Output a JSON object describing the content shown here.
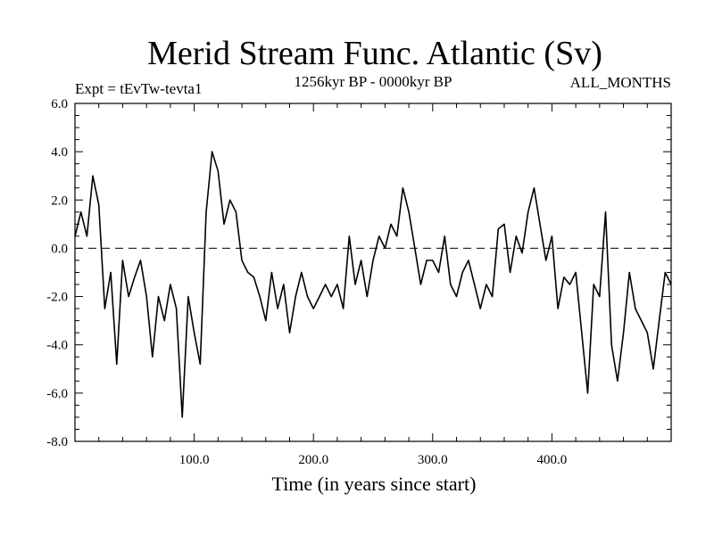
{
  "chart_data": {
    "type": "line",
    "title": "Merid Stream Func. Atlantic (Sv)",
    "subtitle_left": "Expt = tEvTw-tevta1",
    "subtitle_center": "1256kyr BP - 0000kyr BP",
    "subtitle_right": "ALL_MONTHS",
    "xlabel": "Time (in years since start)",
    "ylabel": "",
    "xlim": [
      0,
      500
    ],
    "ylim": [
      -8,
      6
    ],
    "xticks": [
      100,
      200,
      300,
      400
    ],
    "xtick_labels": [
      "100.0",
      "200.0",
      "300.0",
      "400.0"
    ],
    "yticks": [
      6,
      4,
      2,
      0,
      -2,
      -4,
      -6,
      -8
    ],
    "ytick_labels": [
      "6.0",
      "4.0",
      "2.0",
      "0.0",
      "-2.0",
      "-4.0",
      "-6.0",
      "-8.0"
    ],
    "reference_line": 0,
    "series": [
      {
        "name": "Meridional stream function",
        "color": "#000000",
        "x": [
          0,
          5,
          10,
          15,
          20,
          25,
          30,
          35,
          40,
          45,
          50,
          55,
          60,
          65,
          70,
          75,
          80,
          85,
          90,
          95,
          100,
          105,
          110,
          115,
          120,
          125,
          130,
          135,
          140,
          145,
          150,
          155,
          160,
          165,
          170,
          175,
          180,
          185,
          190,
          195,
          200,
          205,
          210,
          215,
          220,
          225,
          230,
          235,
          240,
          245,
          250,
          255,
          260,
          265,
          270,
          275,
          280,
          285,
          290,
          295,
          300,
          305,
          310,
          315,
          320,
          325,
          330,
          335,
          340,
          345,
          350,
          355,
          360,
          365,
          370,
          375,
          380,
          385,
          390,
          395,
          400,
          405,
          410,
          415,
          420,
          425,
          430,
          435,
          440,
          445,
          450,
          455,
          460,
          465,
          470,
          475,
          480,
          485,
          490,
          495,
          500
        ],
        "values": [
          0.5,
          1.5,
          0.5,
          3.0,
          1.8,
          -2.5,
          -1.0,
          -4.8,
          -0.5,
          -2.0,
          -1.2,
          -0.5,
          -2.0,
          -4.5,
          -2.0,
          -3.0,
          -1.5,
          -2.5,
          -7.0,
          -2.0,
          -3.5,
          -4.8,
          1.5,
          4.0,
          3.2,
          1.0,
          2.0,
          1.5,
          -0.5,
          -1.0,
          -1.2,
          -2.0,
          -3.0,
          -1.0,
          -2.5,
          -1.5,
          -3.5,
          -2.0,
          -1.0,
          -2.0,
          -2.5,
          -2.0,
          -1.5,
          -2.0,
          -1.5,
          -2.5,
          0.5,
          -1.5,
          -0.5,
          -2.0,
          -0.5,
          0.5,
          0.0,
          1.0,
          0.5,
          2.5,
          1.5,
          0.0,
          -1.5,
          -0.5,
          -0.5,
          -1.0,
          0.5,
          -1.5,
          -2.0,
          -1.0,
          -0.5,
          -1.5,
          -2.5,
          -1.5,
          -2.0,
          0.8,
          1.0,
          -1.0,
          0.5,
          -0.2,
          1.5,
          2.5,
          1.0,
          -0.5,
          0.5,
          -2.5,
          -1.2,
          -1.5,
          -1.0,
          -3.5,
          -6.0,
          -1.5,
          -2.0,
          1.5,
          -4.0,
          -5.5,
          -3.5,
          -1.0,
          -2.5,
          -3.0,
          -3.5,
          -5.0,
          -3.0,
          -1.0,
          -1.5
        ]
      }
    ]
  }
}
